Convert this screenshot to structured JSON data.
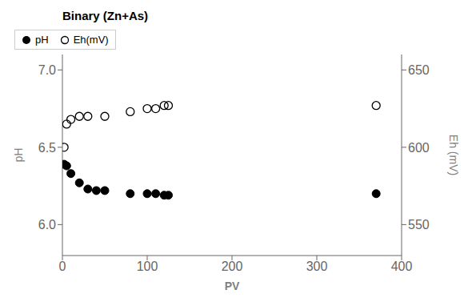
{
  "chart_data": {
    "type": "scatter",
    "title": "Binary (Zn+As)",
    "xlabel": "PV",
    "ylabel": "pH",
    "y2label": "Eh (mV)",
    "xlim": [
      0,
      400
    ],
    "xticks": [
      0,
      100,
      200,
      300,
      400
    ],
    "ylim": [
      5.8,
      7.1
    ],
    "yticks": [
      {
        "value": 6.0,
        "label": "6.0"
      },
      6.5,
      {
        "value": 7.0,
        "label": "7.0"
      }
    ],
    "y2lim": [
      530,
      660
    ],
    "y2ticks": [
      550,
      600,
      650
    ],
    "grid": false,
    "legend": "upper right",
    "series": [
      {
        "name": "pH",
        "color": "#000000",
        "marker": "filled_circle",
        "axis": "y",
        "x": [
          2,
          5,
          10,
          20,
          30,
          40,
          50,
          80,
          100,
          110,
          120,
          125,
          370
        ],
        "values": [
          6.39,
          6.38,
          6.33,
          6.27,
          6.23,
          6.22,
          6.22,
          6.2,
          6.2,
          6.2,
          6.19,
          6.19,
          6.2
        ]
      },
      {
        "name": "Eh(mV)",
        "color": "#000000",
        "marker": "open_circle",
        "axis": "y2",
        "x": [
          2,
          5,
          10,
          20,
          30,
          50,
          80,
          100,
          110,
          120,
          125,
          370
        ],
        "values": [
          600,
          615,
          618,
          620,
          620,
          620,
          623,
          625,
          625,
          627,
          627,
          627
        ]
      }
    ]
  }
}
